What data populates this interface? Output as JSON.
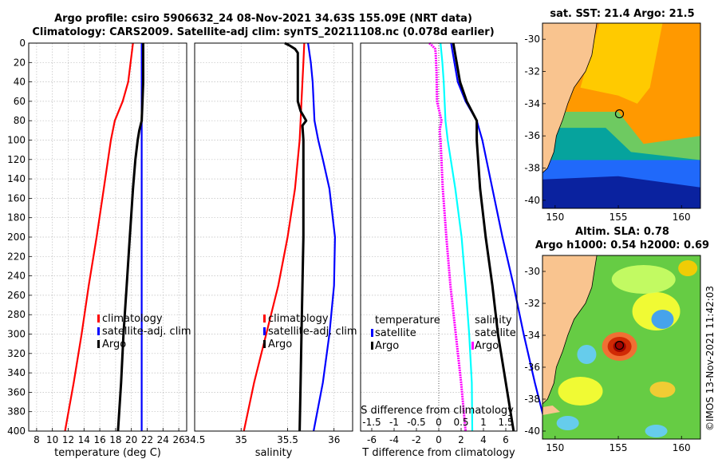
{
  "header": {
    "line1": "Argo profile: csiro 5906632_24 08-Nov-2021 34.63S 155.09E (NRT data)",
    "line2": "Climatology: CARS2009. Satellite-adj clim: synTS_20211108.nc (0.078d earlier)"
  },
  "maps": {
    "sst_title": "sat. SST: 21.4 Argo: 21.5",
    "sla_title1": "Altim. SLA: 0.78",
    "sla_title2": "Argo h1000: 0.54 h2000: 0.69",
    "lat_ticks": [
      -30,
      -32,
      -34,
      -36,
      -38,
      -40
    ],
    "lon_ticks": [
      150,
      155,
      160
    ],
    "lat_range": [
      -29,
      -40.5
    ],
    "lon_range": [
      149,
      161.5
    ],
    "argo_position": {
      "lat": -34.63,
      "lon": 155.09
    }
  },
  "timestamp": "©IMOS 13-Nov-2021 11:42:03",
  "colors": {
    "climatology": "#ff0000",
    "satellite": "#0000ff",
    "argo": "#000000",
    "t_diff": "#00ffff",
    "s_diff": "#ff00ff"
  },
  "chart_data": [
    {
      "type": "line",
      "panel": "temperature",
      "xlabel": "temperature (deg C)",
      "ylabel": "",
      "xlim": [
        7,
        27
      ],
      "ylim": [
        0,
        400
      ],
      "x_ticks": [
        8,
        10,
        12,
        14,
        16,
        18,
        20,
        22,
        24,
        26
      ],
      "y_ticks": [
        0,
        20,
        40,
        60,
        80,
        100,
        120,
        140,
        160,
        180,
        200,
        220,
        240,
        260,
        280,
        300,
        320,
        340,
        360,
        380,
        400
      ],
      "legend": [
        "climatology",
        "satellite-adj. clim",
        "Argo"
      ],
      "series": [
        {
          "name": "climatology",
          "depth": [
            0,
            20,
            40,
            60,
            80,
            100,
            150,
            200,
            250,
            300,
            350,
            400
          ],
          "values": [
            20.2,
            19.9,
            19.6,
            18.9,
            17.9,
            17.4,
            16.5,
            15.6,
            14.6,
            13.7,
            12.7,
            11.6
          ]
        },
        {
          "name": "satellite-adj. clim",
          "depth": [
            0,
            60,
            80,
            100,
            150,
            200,
            300,
            400
          ],
          "values": [
            21.3,
            21.3,
            21.3,
            21.3,
            21.3,
            21.3,
            21.3,
            21.3
          ]
        },
        {
          "name": "Argo",
          "depth": [
            0,
            20,
            40,
            60,
            80,
            90,
            100,
            120,
            150,
            200,
            250,
            300,
            350,
            400
          ],
          "values": [
            21.5,
            21.5,
            21.5,
            21.4,
            21.3,
            21.0,
            20.8,
            20.5,
            20.2,
            19.8,
            19.4,
            19.0,
            18.7,
            18.3
          ]
        }
      ]
    },
    {
      "type": "line",
      "panel": "salinity",
      "xlabel": "salinity",
      "xlim": [
        34.5,
        36.2
      ],
      "ylim": [
        0,
        400
      ],
      "x_ticks": [
        34.5,
        35,
        35.5,
        36
      ],
      "legend": [
        "climatology",
        "satellite-adj. clim",
        "Argo"
      ],
      "series": [
        {
          "name": "climatology",
          "depth": [
            0,
            20,
            40,
            60,
            80,
            100,
            150,
            200,
            250,
            300,
            350,
            400
          ],
          "values": [
            35.68,
            35.67,
            35.66,
            35.65,
            35.64,
            35.63,
            35.58,
            35.5,
            35.4,
            35.27,
            35.14,
            35.03
          ]
        },
        {
          "name": "satellite-adj. clim",
          "depth": [
            0,
            20,
            40,
            80,
            100,
            120,
            150,
            200,
            250,
            300,
            350,
            400
          ],
          "values": [
            35.72,
            35.75,
            35.77,
            35.79,
            35.83,
            35.88,
            35.95,
            36.01,
            36.0,
            35.95,
            35.88,
            35.78
          ]
        },
        {
          "name": "Argo",
          "depth": [
            0,
            3,
            6,
            10,
            30,
            60,
            70,
            75,
            80,
            85,
            100,
            150,
            200,
            250,
            300,
            350,
            400
          ],
          "values": [
            35.47,
            35.53,
            35.58,
            35.61,
            35.61,
            35.61,
            35.64,
            35.67,
            35.7,
            35.66,
            35.67,
            35.67,
            35.67,
            35.66,
            35.65,
            35.64,
            35.63
          ]
        }
      ]
    },
    {
      "type": "line",
      "panel": "differences",
      "xlabel": "T difference from climatology",
      "xlim": [
        -7,
        7
      ],
      "ylim": [
        0,
        400
      ],
      "x_ticks": [
        -6,
        -4,
        -2,
        0,
        2,
        4,
        6
      ],
      "top_label": "S difference from climatology",
      "top_ticks": [
        -1.5,
        -1,
        -0.5,
        0,
        0.5,
        1,
        1.5
      ],
      "top_range": [
        -1.75,
        1.75
      ],
      "legend_t": [
        "temperature",
        "satellite",
        "Argo"
      ],
      "legend_s": [
        "salinity",
        "satellite",
        "Argo"
      ],
      "series": [
        {
          "name": "T satellite",
          "axis": "T",
          "depth": [
            0,
            20,
            40,
            60,
            80,
            100,
            150,
            200,
            250,
            300,
            350,
            400
          ],
          "values": [
            1.1,
            1.4,
            1.7,
            2.4,
            3.4,
            3.9,
            4.8,
            5.7,
            6.7,
            7.6,
            8.6,
            9.7
          ]
        },
        {
          "name": "T Argo",
          "axis": "T",
          "depth": [
            0,
            20,
            40,
            60,
            80,
            100,
            150,
            200,
            250,
            300,
            350,
            400
          ],
          "values": [
            1.3,
            1.6,
            1.9,
            2.5,
            3.4,
            3.4,
            3.7,
            4.2,
            4.8,
            5.3,
            6.0,
            6.7
          ]
        },
        {
          "name": "S satellite",
          "axis": "S",
          "depth": [
            0,
            20,
            40,
            60,
            80,
            100,
            150,
            200,
            250,
            300,
            350,
            400
          ],
          "values": [
            0.04,
            0.08,
            0.11,
            0.13,
            0.15,
            0.2,
            0.37,
            0.51,
            0.6,
            0.68,
            0.74,
            0.75
          ]
        },
        {
          "name": "S Argo",
          "axis": "S",
          "depth": [
            0,
            3,
            6,
            10,
            30,
            60,
            80,
            90,
            100,
            150,
            200,
            250,
            300,
            350,
            400
          ],
          "values": [
            -0.21,
            -0.14,
            -0.08,
            -0.07,
            -0.05,
            -0.04,
            0.06,
            0.02,
            0.04,
            0.09,
            0.17,
            0.26,
            0.38,
            0.5,
            0.6
          ]
        }
      ]
    }
  ]
}
